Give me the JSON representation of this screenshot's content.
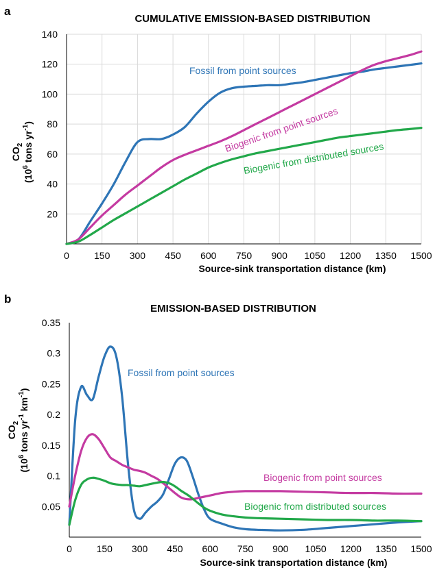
{
  "colors": {
    "fossil": "#2e75b6",
    "biogenic_point": "#c43aa1",
    "biogenic_distributed": "#22a84a"
  },
  "chart_data": [
    {
      "panel_letter": "a",
      "type": "line",
      "title": "CUMULATIVE EMISSION-BASED DISTRIBUTION",
      "xlabel": "Source-sink transportation distance (km)",
      "ylabel_line1": "CO",
      "ylabel_sub": "2",
      "ylabel_line2_pre": "(10",
      "ylabel_line2_sup": "6",
      "ylabel_line2_mid": " tons yr",
      "ylabel_line2_sup2": "-1",
      "ylabel_line2_post": ")",
      "xlim": [
        0,
        1500
      ],
      "ylim": [
        0,
        140
      ],
      "grid": true,
      "xticks": [
        "0",
        "150",
        "300",
        "450",
        "600",
        "750",
        "900",
        "1050",
        "1200",
        "1350",
        "1500"
      ],
      "yticks": [
        "20",
        "40",
        "60",
        "80",
        "100",
        "120",
        "140"
      ],
      "x": [
        0,
        50,
        100,
        150,
        200,
        250,
        300,
        350,
        400,
        450,
        500,
        550,
        600,
        650,
        700,
        750,
        800,
        850,
        900,
        950,
        1000,
        1050,
        1100,
        1150,
        1200,
        1250,
        1300,
        1350,
        1400,
        1450,
        1500
      ],
      "series": [
        {
          "key": "fossil",
          "name": "Fossil from point sources",
          "values": [
            0,
            3,
            15,
            27,
            40,
            55,
            68,
            70,
            70,
            73,
            78,
            87,
            95,
            101,
            104,
            105,
            105.5,
            106,
            106,
            107,
            108,
            109.5,
            111,
            112.5,
            114,
            115,
            116.5,
            117.5,
            118.5,
            119.5,
            120.5
          ]
        },
        {
          "key": "biogenic_point",
          "name": "Biogenic from point sources",
          "values": [
            0,
            3,
            11,
            19,
            26,
            33,
            39,
            45,
            51,
            56,
            59.5,
            62.5,
            65.5,
            68.5,
            72,
            76,
            80,
            84,
            88,
            92,
            96,
            100,
            104,
            108,
            112,
            116,
            119.5,
            122,
            124,
            126,
            128.5
          ]
        },
        {
          "key": "biogenic_distributed",
          "name": "Biogenic from distributed sources",
          "values": [
            0,
            1.5,
            6,
            11,
            16,
            20.5,
            25,
            29.5,
            34,
            38.5,
            43,
            47,
            51,
            54,
            56.5,
            58.5,
            60.5,
            62,
            63.5,
            65,
            66.5,
            68,
            69.5,
            71,
            72,
            73,
            74,
            75,
            76,
            76.7,
            77.5
          ]
        }
      ],
      "labels": [
        {
          "series": "fossil",
          "text": "Fossil from point sources"
        },
        {
          "series": "biogenic_point",
          "text": "Biogenic from point sources"
        },
        {
          "series": "biogenic_distributed",
          "text": "Biogenic from distributed sources"
        }
      ]
    },
    {
      "panel_letter": "b",
      "type": "line",
      "title": "EMISSION-BASED DISTRIBUTION",
      "xlabel": "Source-sink transportation distance (km)",
      "ylabel_line1": "CO",
      "ylabel_sub": "2",
      "ylabel_line2_pre": "(10",
      "ylabel_line2_sup": "6",
      "ylabel_line2_mid": " tons yr",
      "ylabel_line2_sup2": "-1",
      "ylabel_line2_mid2": " km",
      "ylabel_line2_sup3": "-1",
      "ylabel_line2_post": ")",
      "xlim": [
        0,
        1500
      ],
      "ylim": [
        0,
        0.35
      ],
      "grid": false,
      "xticks": [
        "0",
        "150",
        "300",
        "450",
        "600",
        "750",
        "900",
        "1050",
        "1200",
        "1350",
        "1500"
      ],
      "yticks": [
        "0.05",
        "0.1",
        "0.15",
        "0.2",
        "0.25",
        "0.3",
        "0.35"
      ],
      "x": [
        0,
        25,
        50,
        75,
        100,
        125,
        150,
        175,
        200,
        225,
        250,
        275,
        300,
        325,
        350,
        375,
        400,
        425,
        450,
        475,
        500,
        525,
        550,
        575,
        600,
        650,
        700,
        750,
        800,
        900,
        1000,
        1100,
        1200,
        1300,
        1400,
        1500
      ],
      "series": [
        {
          "key": "fossil",
          "name": "Fossil from point sources",
          "values": [
            0.02,
            0.19,
            0.245,
            0.232,
            0.225,
            0.262,
            0.295,
            0.311,
            0.295,
            0.23,
            0.12,
            0.045,
            0.03,
            0.04,
            0.05,
            0.058,
            0.07,
            0.095,
            0.12,
            0.13,
            0.125,
            0.1,
            0.07,
            0.045,
            0.03,
            0.022,
            0.016,
            0.013,
            0.012,
            0.011,
            0.012,
            0.015,
            0.018,
            0.021,
            0.024,
            0.026
          ]
        },
        {
          "key": "biogenic_point",
          "name": "Biogenic from point sources",
          "values": [
            0.05,
            0.1,
            0.14,
            0.162,
            0.168,
            0.16,
            0.145,
            0.13,
            0.124,
            0.118,
            0.114,
            0.11,
            0.108,
            0.105,
            0.1,
            0.095,
            0.088,
            0.08,
            0.072,
            0.065,
            0.062,
            0.062,
            0.064,
            0.066,
            0.068,
            0.072,
            0.074,
            0.075,
            0.075,
            0.075,
            0.074,
            0.073,
            0.072,
            0.072,
            0.071,
            0.071
          ]
        },
        {
          "key": "biogenic_distributed",
          "name": "Biogenic from distributed sources",
          "values": [
            0.02,
            0.06,
            0.085,
            0.094,
            0.097,
            0.095,
            0.092,
            0.088,
            0.086,
            0.085,
            0.085,
            0.084,
            0.083,
            0.085,
            0.087,
            0.089,
            0.09,
            0.088,
            0.083,
            0.076,
            0.07,
            0.063,
            0.055,
            0.048,
            0.043,
            0.037,
            0.034,
            0.032,
            0.031,
            0.03,
            0.029,
            0.028,
            0.028,
            0.027,
            0.027,
            0.026
          ]
        }
      ],
      "labels": [
        {
          "series": "fossil",
          "text": "Fossil from point sources"
        },
        {
          "series": "biogenic_point",
          "text": "Biogenic from point sources"
        },
        {
          "series": "biogenic_distributed",
          "text": "Biogenic from distributed sources"
        }
      ]
    }
  ]
}
